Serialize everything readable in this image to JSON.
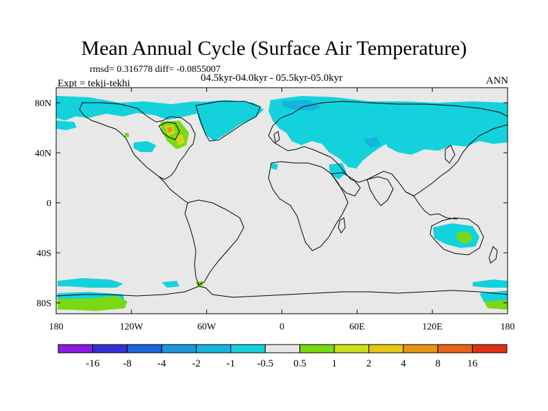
{
  "title": "Mean Annual Cycle (Surface Air Temperature)",
  "stats_text": "rmsd= 0.316778 diff= -0.0855007",
  "period_text": "04.5kyr-04.0kyr - 05.5kyr-05.0kyr",
  "experiment_text": "Expt = tekji-tekhi",
  "season": "ANN",
  "map": {
    "lat_labels": [
      "80N",
      "40N",
      "0",
      "40S",
      "80S"
    ],
    "lon_labels": [
      "180",
      "120W",
      "60W",
      "0",
      "60E",
      "120E",
      "180"
    ],
    "background_color": "#e8e8e8"
  },
  "colorbar": {
    "colors": [
      "#8a1ce0",
      "#3232d4",
      "#1e64dc",
      "#1e96dc",
      "#14b4dc",
      "#14d2dc",
      "#e6e6e6",
      "#7ad814",
      "#c8e01e",
      "#e6c814",
      "#e69614",
      "#e66414",
      "#dc3214"
    ],
    "labels": [
      "-16",
      "-8",
      "-4",
      "-2",
      "-1",
      "-0.5",
      "0.5",
      "1",
      "2",
      "4",
      "8",
      "16"
    ]
  }
}
